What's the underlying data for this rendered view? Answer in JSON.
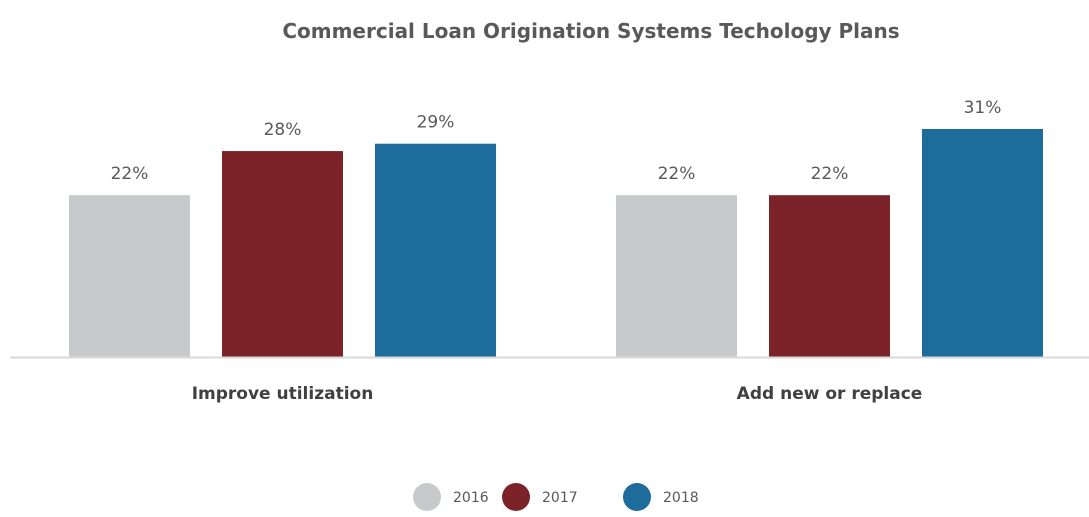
{
  "chart_data": {
    "type": "bar",
    "title": "Commercial Loan Origination Systems Techology Plans",
    "xlabel": "",
    "ylabel": "",
    "categories": [
      "Improve utilization",
      "Add new or replace"
    ],
    "series": [
      {
        "name": "2016",
        "color": "#c8c9cb",
        "values": [
          22,
          22
        ],
        "labels": [
          "22%",
          "22%"
        ]
      },
      {
        "name": "2017",
        "color": "#7b2328",
        "values": [
          28,
          22
        ],
        "labels": [
          "28%",
          "22%"
        ]
      },
      {
        "name": "2018",
        "color": "#1d6c9c",
        "values": [
          29,
          31
        ],
        "labels": [
          "29%",
          "31%"
        ]
      }
    ],
    "ylim": [
      0,
      31
    ],
    "grid": false,
    "legend_position": "bottom"
  }
}
